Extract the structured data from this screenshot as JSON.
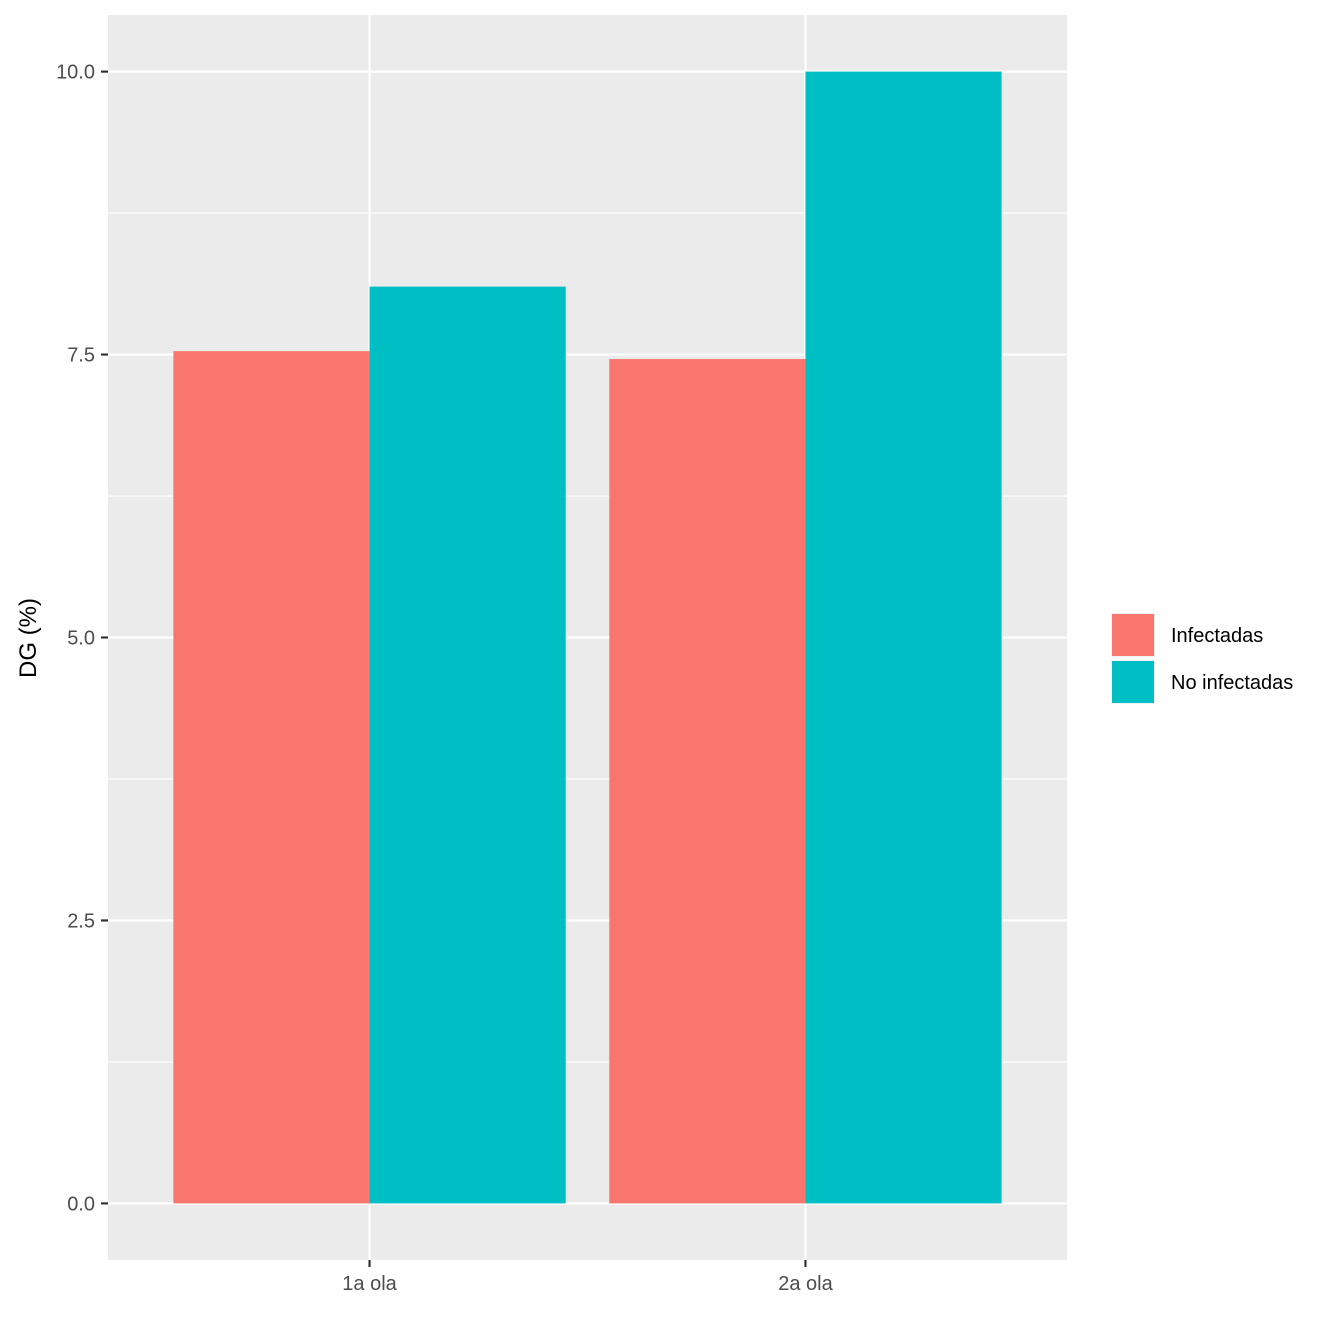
{
  "chart_data": {
    "type": "bar",
    "categories": [
      "1a ola",
      "2a ola"
    ],
    "series": [
      {
        "name": "Infectadas",
        "values": [
          7.53,
          7.46
        ],
        "color": "#F8766D"
      },
      {
        "name": "No infectadas",
        "values": [
          8.1,
          10.0
        ],
        "color": "#00BFC4"
      }
    ],
    "xlabel": "",
    "ylabel": "DG (%)",
    "ylim": [
      -0.5,
      10.5
    ],
    "yticks": [
      0.0,
      2.5,
      5.0,
      7.5,
      10.0
    ],
    "ytick_labels": [
      "0.0",
      "2.5",
      "5.0",
      "7.5",
      "10.0"
    ],
    "grid": true,
    "legend_position": "right",
    "panel_background": "#EBEBEB"
  }
}
